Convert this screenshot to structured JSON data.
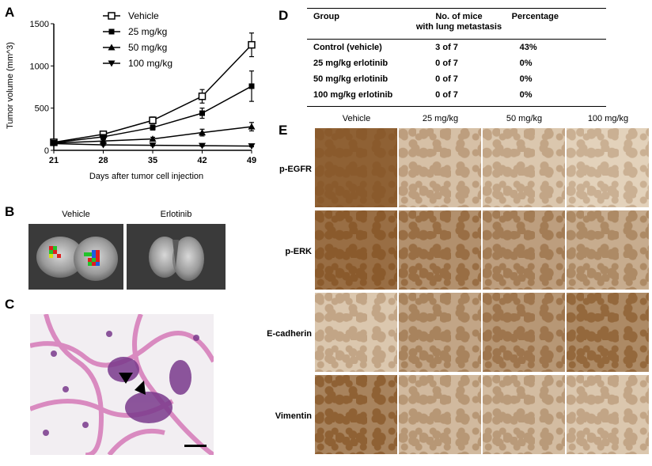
{
  "panels": {
    "A": "A",
    "B": "B",
    "C": "C",
    "D": "D",
    "E": "E"
  },
  "chart_data": {
    "type": "line",
    "x": [
      21,
      28,
      35,
      42,
      49
    ],
    "xlabel": "Days after tumor cell injection",
    "ylabel": "Tumor volume (mm^3)",
    "ylim": [
      0,
      1500
    ],
    "yticks": [
      0,
      500,
      1000,
      1500
    ],
    "legend_position": "top-left",
    "series": [
      {
        "name": "Vehicle",
        "marker": "open-square",
        "values": [
          95,
          190,
          355,
          640,
          1250
        ],
        "errors": [
          10,
          25,
          40,
          80,
          140
        ]
      },
      {
        "name": "25 mg/kg",
        "marker": "filled-square",
        "values": [
          90,
          160,
          270,
          440,
          760
        ],
        "errors": [
          10,
          20,
          30,
          60,
          180
        ]
      },
      {
        "name": "50 mg/kg",
        "marker": "triangle-up",
        "values": [
          85,
          110,
          135,
          210,
          280
        ],
        "errors": [
          8,
          15,
          20,
          40,
          50
        ]
      },
      {
        "name": "100 mg/kg",
        "marker": "triangle-down",
        "values": [
          80,
          65,
          60,
          55,
          50
        ],
        "errors": [
          8,
          8,
          8,
          8,
          8
        ]
      }
    ]
  },
  "panelB": {
    "left_label": "Vehicle",
    "right_label": "Erlotinib"
  },
  "tableD": {
    "headers": [
      "Group",
      "No. of mice",
      "with lung metastasis",
      "Percentage"
    ],
    "rows": [
      {
        "group": "Control (vehicle)",
        "mice": "3 of 7",
        "pct": "43%"
      },
      {
        "group": "25 mg/kg erlotinib",
        "mice": "0 of 7",
        "pct": "0%"
      },
      {
        "group": "50 mg/kg erlotinib",
        "mice": "0 of 7",
        "pct": "0%"
      },
      {
        "group": "100 mg/kg erlotinib",
        "mice": "0 of 7",
        "pct": "0%"
      }
    ]
  },
  "panelE": {
    "columns": [
      "Vehicle",
      "25 mg/kg",
      "50 mg/kg",
      "100 mg/kg"
    ],
    "rows": [
      "p-EGFR",
      "p-ERK",
      "E-cadherin",
      "Vimentin"
    ]
  },
  "colors": {
    "stain_dark": "#8a5a2c",
    "stain_light": "#efe2cf",
    "he_purple": "#8a3f8c",
    "he_pink": "#e6a0c8"
  }
}
